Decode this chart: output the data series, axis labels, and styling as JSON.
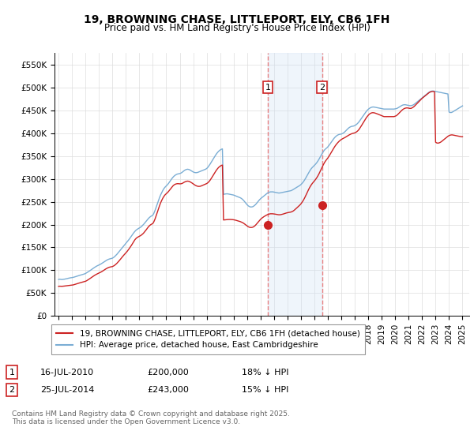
{
  "title": "19, BROWNING CHASE, LITTLEPORT, ELY, CB6 1FH",
  "subtitle": "Price paid vs. HM Land Registry's House Price Index (HPI)",
  "ylim": [
    0,
    575000
  ],
  "yticks": [
    0,
    50000,
    100000,
    150000,
    200000,
    250000,
    300000,
    350000,
    400000,
    450000,
    500000,
    550000
  ],
  "ytick_labels": [
    "£0",
    "£50K",
    "£100K",
    "£150K",
    "£200K",
    "£250K",
    "£300K",
    "£350K",
    "£400K",
    "£450K",
    "£500K",
    "£550K"
  ],
  "xlim_start": 1994.7,
  "xlim_end": 2025.5,
  "grid_color": "#dddddd",
  "event1_x": 2010.54,
  "event1_y": 200000,
  "event2_x": 2014.56,
  "event2_y": 243000,
  "shade_color": "#cce0f5",
  "vline_color": "#e88080",
  "red_line_color": "#cc2222",
  "blue_line_color": "#7aadd4",
  "legend_entry1": "19, BROWNING CHASE, LITTLEPORT, ELY, CB6 1FH (detached house)",
  "legend_entry2": "HPI: Average price, detached house, East Cambridgeshire",
  "copyright": "Contains HM Land Registry data © Crown copyright and database right 2025.\nThis data is licensed under the Open Government Licence v3.0.",
  "hpi_months": [
    1995.0,
    1995.083,
    1995.167,
    1995.25,
    1995.333,
    1995.417,
    1995.5,
    1995.583,
    1995.667,
    1995.75,
    1995.833,
    1995.917,
    1996.0,
    1996.083,
    1996.167,
    1996.25,
    1996.333,
    1996.417,
    1996.5,
    1996.583,
    1996.667,
    1996.75,
    1996.833,
    1996.917,
    1997.0,
    1997.083,
    1997.167,
    1997.25,
    1997.333,
    1997.417,
    1997.5,
    1997.583,
    1997.667,
    1997.75,
    1997.833,
    1997.917,
    1998.0,
    1998.083,
    1998.167,
    1998.25,
    1998.333,
    1998.417,
    1998.5,
    1998.583,
    1998.667,
    1998.75,
    1998.833,
    1998.917,
    1999.0,
    1999.083,
    1999.167,
    1999.25,
    1999.333,
    1999.417,
    1999.5,
    1999.583,
    1999.667,
    1999.75,
    1999.833,
    1999.917,
    2000.0,
    2000.083,
    2000.167,
    2000.25,
    2000.333,
    2000.417,
    2000.5,
    2000.583,
    2000.667,
    2000.75,
    2000.833,
    2000.917,
    2001.0,
    2001.083,
    2001.167,
    2001.25,
    2001.333,
    2001.417,
    2001.5,
    2001.583,
    2001.667,
    2001.75,
    2001.833,
    2001.917,
    2002.0,
    2002.083,
    2002.167,
    2002.25,
    2002.333,
    2002.417,
    2002.5,
    2002.583,
    2002.667,
    2002.75,
    2002.833,
    2002.917,
    2003.0,
    2003.083,
    2003.167,
    2003.25,
    2003.333,
    2003.417,
    2003.5,
    2003.583,
    2003.667,
    2003.75,
    2003.833,
    2003.917,
    2004.0,
    2004.083,
    2004.167,
    2004.25,
    2004.333,
    2004.417,
    2004.5,
    2004.583,
    2004.667,
    2004.75,
    2004.833,
    2004.917,
    2005.0,
    2005.083,
    2005.167,
    2005.25,
    2005.333,
    2005.417,
    2005.5,
    2005.583,
    2005.667,
    2005.75,
    2005.833,
    2005.917,
    2006.0,
    2006.083,
    2006.167,
    2006.25,
    2006.333,
    2006.417,
    2006.5,
    2006.583,
    2006.667,
    2006.75,
    2006.833,
    2006.917,
    2007.0,
    2007.083,
    2007.167,
    2007.25,
    2007.333,
    2007.417,
    2007.5,
    2007.583,
    2007.667,
    2007.75,
    2007.833,
    2007.917,
    2008.0,
    2008.083,
    2008.167,
    2008.25,
    2008.333,
    2008.417,
    2008.5,
    2008.583,
    2008.667,
    2008.75,
    2008.833,
    2008.917,
    2009.0,
    2009.083,
    2009.167,
    2009.25,
    2009.333,
    2009.417,
    2009.5,
    2009.583,
    2009.667,
    2009.75,
    2009.833,
    2009.917,
    2010.0,
    2010.083,
    2010.167,
    2010.25,
    2010.333,
    2010.417,
    2010.5,
    2010.583,
    2010.667,
    2010.75,
    2010.833,
    2010.917,
    2011.0,
    2011.083,
    2011.167,
    2011.25,
    2011.333,
    2011.417,
    2011.5,
    2011.583,
    2011.667,
    2011.75,
    2011.833,
    2011.917,
    2012.0,
    2012.083,
    2012.167,
    2012.25,
    2012.333,
    2012.417,
    2012.5,
    2012.583,
    2012.667,
    2012.75,
    2012.833,
    2012.917,
    2013.0,
    2013.083,
    2013.167,
    2013.25,
    2013.333,
    2013.417,
    2013.5,
    2013.583,
    2013.667,
    2013.75,
    2013.833,
    2013.917,
    2014.0,
    2014.083,
    2014.167,
    2014.25,
    2014.333,
    2014.417,
    2014.5,
    2014.583,
    2014.667,
    2014.75,
    2014.833,
    2014.917,
    2015.0,
    2015.083,
    2015.167,
    2015.25,
    2015.333,
    2015.417,
    2015.5,
    2015.583,
    2015.667,
    2015.75,
    2015.833,
    2015.917,
    2016.0,
    2016.083,
    2016.167,
    2016.25,
    2016.333,
    2016.417,
    2016.5,
    2016.583,
    2016.667,
    2016.75,
    2016.833,
    2016.917,
    2017.0,
    2017.083,
    2017.167,
    2017.25,
    2017.333,
    2017.417,
    2017.5,
    2017.583,
    2017.667,
    2017.75,
    2017.833,
    2017.917,
    2018.0,
    2018.083,
    2018.167,
    2018.25,
    2018.333,
    2018.417,
    2018.5,
    2018.583,
    2018.667,
    2018.75,
    2018.833,
    2018.917,
    2019.0,
    2019.083,
    2019.167,
    2019.25,
    2019.333,
    2019.417,
    2019.5,
    2019.583,
    2019.667,
    2019.75,
    2019.833,
    2019.917,
    2020.0,
    2020.083,
    2020.167,
    2020.25,
    2020.333,
    2020.417,
    2020.5,
    2020.583,
    2020.667,
    2020.75,
    2020.833,
    2020.917,
    2021.0,
    2021.083,
    2021.167,
    2021.25,
    2021.333,
    2021.417,
    2021.5,
    2021.583,
    2021.667,
    2021.75,
    2021.833,
    2021.917,
    2022.0,
    2022.083,
    2022.167,
    2022.25,
    2022.333,
    2022.417,
    2022.5,
    2022.583,
    2022.667,
    2022.75,
    2022.833,
    2022.917,
    2023.0,
    2023.083,
    2023.167,
    2023.25,
    2023.333,
    2023.417,
    2023.5,
    2023.583,
    2023.667,
    2023.75,
    2023.833,
    2023.917,
    2024.0,
    2024.083,
    2024.167,
    2024.25,
    2024.333,
    2024.417,
    2024.5,
    2024.583,
    2024.667,
    2024.75,
    2024.833,
    2024.917,
    2025.0
  ],
  "hpi_values": [
    80000,
    80500,
    80200,
    79800,
    80100,
    80500,
    81000,
    81500,
    82000,
    82800,
    83200,
    83800,
    84000,
    84500,
    85200,
    86000,
    86800,
    87500,
    88300,
    89100,
    89800,
    90500,
    91200,
    92000,
    93000,
    94500,
    96000,
    97500,
    99200,
    101000,
    102800,
    104500,
    106200,
    107800,
    109200,
    110500,
    111500,
    112800,
    114200,
    115800,
    117500,
    119200,
    120800,
    122200,
    123500,
    124500,
    125200,
    125800,
    126500,
    128000,
    130000,
    132500,
    135000,
    138000,
    141000,
    144000,
    147000,
    150000,
    153000,
    156000,
    159000,
    162000,
    165000,
    168000,
    171500,
    175000,
    178500,
    182000,
    185000,
    187500,
    189500,
    191000,
    192500,
    194000,
    196000,
    198500,
    201000,
    204000,
    207000,
    210000,
    213000,
    215500,
    217500,
    219000,
    220500,
    225000,
    231000,
    238000,
    245000,
    252000,
    259000,
    265000,
    270000,
    275000,
    279000,
    282000,
    284500,
    287000,
    290000,
    293500,
    297000,
    300500,
    303500,
    306000,
    308000,
    309500,
    310500,
    311000,
    311500,
    312500,
    314000,
    316000,
    318000,
    319500,
    320500,
    321000,
    320500,
    319500,
    318000,
    316500,
    315000,
    314000,
    313500,
    313500,
    314000,
    315000,
    316000,
    317000,
    318000,
    319000,
    320000,
    321000,
    322500,
    325000,
    328500,
    332000,
    336000,
    340000,
    344000,
    348000,
    352000,
    355500,
    358500,
    361000,
    363000,
    364500,
    365500,
    266000,
    266500,
    267000,
    267200,
    267000,
    266500,
    266000,
    265500,
    265000,
    264500,
    263500,
    262500,
    261500,
    260500,
    259500,
    258500,
    257000,
    255000,
    252500,
    249500,
    246500,
    243500,
    241000,
    239500,
    238500,
    238500,
    239000,
    240500,
    242500,
    245000,
    248000,
    251000,
    254000,
    256500,
    258500,
    260500,
    262500,
    264500,
    266500,
    268500,
    270000,
    271000,
    271500,
    271500,
    271500,
    271000,
    270500,
    270000,
    269500,
    269000,
    269000,
    269500,
    270000,
    270500,
    271000,
    271500,
    272000,
    272500,
    273000,
    273500,
    274000,
    275000,
    276500,
    278000,
    279500,
    281000,
    282500,
    284000,
    285500,
    287500,
    290000,
    293000,
    296500,
    300500,
    305000,
    309500,
    314000,
    318000,
    321500,
    324500,
    327000,
    329500,
    332000,
    335000,
    338500,
    342500,
    347000,
    351500,
    356000,
    360000,
    363000,
    365500,
    367500,
    370000,
    373000,
    376500,
    380000,
    383500,
    387000,
    390000,
    392500,
    394500,
    396000,
    397000,
    397500,
    398000,
    399000,
    400500,
    402500,
    405000,
    407500,
    410000,
    412000,
    413500,
    414500,
    415000,
    415500,
    416500,
    418000,
    420000,
    422500,
    425500,
    429000,
    432500,
    436000,
    439500,
    443000,
    446500,
    449500,
    452000,
    454000,
    455500,
    456500,
    457000,
    457000,
    456500,
    456000,
    455500,
    455000,
    454500,
    454000,
    453500,
    453000,
    452500,
    452500,
    452500,
    452500,
    452500,
    452500,
    452500,
    452500,
    452500,
    452500,
    453000,
    453500,
    454500,
    456000,
    457500,
    459000,
    460500,
    461500,
    462000,
    462000,
    461500,
    461000,
    460500,
    460000,
    460000,
    460500,
    461500,
    463000,
    465000,
    467000,
    469000,
    471000,
    473000,
    475000,
    477000,
    479000,
    481000,
    483000,
    485000,
    487000,
    489000,
    490500,
    491500,
    492000,
    492000,
    491500,
    491000,
    490500,
    490000,
    489500,
    489000,
    488500,
    488000,
    487500,
    487000,
    486500,
    486000,
    485500,
    446000,
    445000,
    445000,
    446000,
    447500,
    449000,
    450500,
    452000,
    453500,
    455000,
    456500,
    458000,
    459500,
    461000,
    462500,
    463500,
    464000,
    464000,
    463500,
    463000,
    462500,
    462000,
    461500,
    461000,
    461000
  ],
  "red_values": [
    65000,
    65200,
    65100,
    65000,
    65200,
    65500,
    65800,
    66000,
    66300,
    66700,
    67000,
    67300,
    67500,
    68000,
    68700,
    69500,
    70300,
    71000,
    71800,
    72600,
    73300,
    74000,
    74700,
    75400,
    76000,
    77200,
    78700,
    80300,
    82000,
    83800,
    85500,
    87200,
    88800,
    90300,
    91600,
    92800,
    93800,
    95000,
    96400,
    97900,
    99500,
    101200,
    102800,
    104200,
    105500,
    106500,
    107200,
    107700,
    108200,
    109400,
    111000,
    113000,
    115300,
    118000,
    120800,
    123800,
    126800,
    129800,
    132700,
    135400,
    138000,
    140900,
    144100,
    147500,
    151000,
    154800,
    158800,
    163000,
    166700,
    169500,
    171600,
    173100,
    174400,
    175700,
    177400,
    179500,
    182000,
    185000,
    188200,
    191500,
    194800,
    197500,
    199500,
    201000,
    202200,
    206500,
    212300,
    219200,
    226600,
    234100,
    241300,
    247700,
    253200,
    258000,
    262000,
    265200,
    267400,
    269700,
    272400,
    275500,
    278800,
    282000,
    284700,
    286800,
    288200,
    289000,
    289400,
    289300,
    289000,
    289100,
    289800,
    291000,
    292600,
    293800,
    294600,
    295000,
    294600,
    293700,
    292300,
    290700,
    288900,
    287200,
    285700,
    284500,
    283700,
    283400,
    283600,
    284300,
    285300,
    286400,
    287500,
    288500,
    289600,
    291300,
    293800,
    296800,
    300500,
    304400,
    308400,
    312400,
    316400,
    320000,
    323100,
    325700,
    327700,
    329200,
    330100,
    210000,
    210200,
    210500,
    210800,
    211000,
    211100,
    211100,
    211000,
    210800,
    210500,
    210000,
    209400,
    208700,
    207900,
    207200,
    206400,
    205400,
    204200,
    202700,
    200800,
    198800,
    196900,
    195300,
    194200,
    193600,
    193600,
    194200,
    195500,
    197400,
    199900,
    202700,
    205700,
    208700,
    211400,
    213700,
    215600,
    217300,
    218800,
    220200,
    221500,
    222500,
    223200,
    223600,
    223600,
    223500,
    223200,
    222800,
    222300,
    221900,
    221500,
    221400,
    221700,
    222200,
    222900,
    223700,
    224500,
    225300,
    225900,
    226400,
    226900,
    227300,
    228200,
    229500,
    231300,
    233400,
    235700,
    238000,
    240300,
    242600,
    245300,
    248700,
    252500,
    256800,
    261700,
    267000,
    272300,
    277400,
    282000,
    286000,
    289500,
    292500,
    295400,
    298500,
    302000,
    306000,
    310500,
    315500,
    320800,
    326000,
    331000,
    335500,
    339300,
    342500,
    345700,
    349300,
    353400,
    357500,
    361800,
    366000,
    370000,
    373500,
    376700,
    379500,
    382000,
    384200,
    386000,
    387500,
    388700,
    390000,
    391500,
    393000,
    394500,
    396000,
    397300,
    398400,
    399200,
    399800,
    400500,
    401800,
    403500,
    405800,
    408800,
    412500,
    416500,
    420500,
    424500,
    428500,
    432500,
    436000,
    439000,
    441500,
    443200,
    444200,
    444600,
    444400,
    443800,
    443000,
    442000,
    441000,
    440000,
    439000,
    438000,
    437000,
    436000,
    436000,
    436000,
    436000,
    436000,
    436000,
    436000,
    436000,
    436000,
    436000,
    437000,
    438000,
    440000,
    442500,
    445000,
    447500,
    450000,
    452000,
    453500,
    454500,
    455000,
    455000,
    454500,
    454000,
    454000,
    455000,
    456500,
    458500,
    461000,
    463500,
    466000,
    468500,
    471000,
    473500,
    476000,
    478000,
    480000,
    482000,
    484000,
    486000,
    488000,
    489500,
    490500,
    491000,
    491000,
    490500,
    380000,
    378500,
    378000,
    378500,
    379500,
    381000,
    383000,
    385000,
    387000,
    389000,
    391000,
    393000,
    394500,
    395500,
    396000,
    396000,
    395500,
    395000,
    394500,
    394000,
    393500,
    393000,
    392500,
    392000,
    392000
  ]
}
